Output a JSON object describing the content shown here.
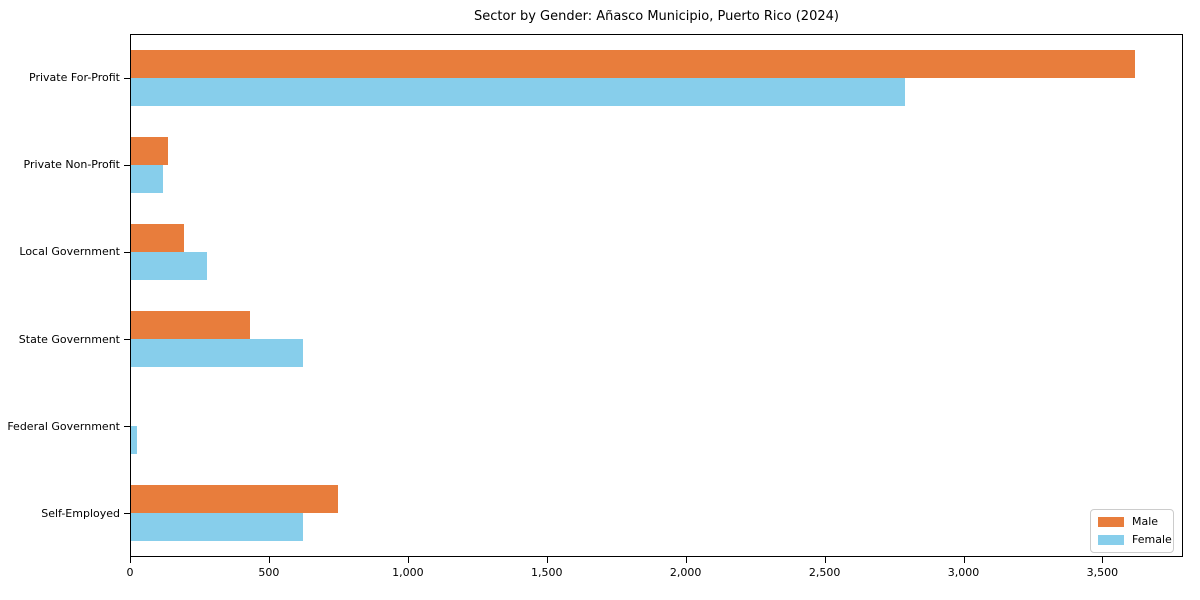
{
  "chart_data": {
    "type": "bar",
    "orientation": "horizontal",
    "title": "Sector by Gender: Añasco Municipio, Puerto Rico (2024)",
    "categories": [
      "Private For-Profit",
      "Private Non-Profit",
      "Local Government",
      "State Government",
      "Federal Government",
      "Self-Employed"
    ],
    "series": [
      {
        "name": "Male",
        "color": "#e87d3c",
        "values": [
          3620,
          134,
          190,
          428,
          0,
          748
        ]
      },
      {
        "name": "Female",
        "color": "#87ceeb",
        "values": [
          2790,
          116,
          273,
          620,
          23,
          620
        ]
      }
    ],
    "xlabel": "",
    "ylabel": "",
    "xlim": [
      0,
      3790
    ],
    "x_ticks": [
      {
        "value": 0,
        "label": "0"
      },
      {
        "value": 500,
        "label": "500"
      },
      {
        "value": 1000,
        "label": "1,000"
      },
      {
        "value": 1500,
        "label": "1,500"
      },
      {
        "value": 2000,
        "label": "2,000"
      },
      {
        "value": 2500,
        "label": "2,500"
      },
      {
        "value": 3000,
        "label": "3,000"
      },
      {
        "value": 3500,
        "label": "3,500"
      }
    ],
    "grid": false,
    "legend_position": "lower right",
    "spine_color": "#000000",
    "background_color": "#ffffff"
  }
}
